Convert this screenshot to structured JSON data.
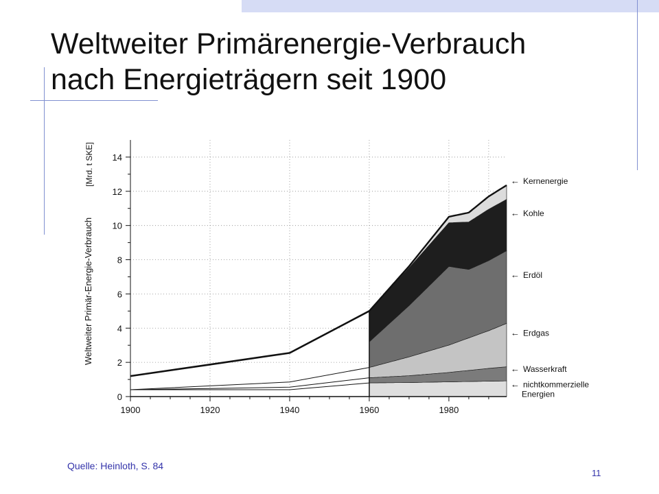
{
  "slide": {
    "title_line1": "Weltweiter Primärenergie-Verbrauch",
    "title_line2": "nach Energieträgern seit 1900",
    "source": "Quelle: Heinloth, S. 84",
    "page_number": "11"
  },
  "colors": {
    "decor_bar": "#d6dcf5",
    "decor_line": "#7f8fd0",
    "footer_text": "#3333aa"
  },
  "chart_data": {
    "type": "area",
    "ylabel": "Weltweiter Primär-Energie-Verbrauch",
    "yunit": "[Mrd. t SKE]",
    "ylim": [
      0,
      15
    ],
    "xlim": [
      1900,
      1996
    ],
    "yticks": [
      0,
      2,
      4,
      6,
      8,
      10,
      12,
      14
    ],
    "xticks": [
      1900,
      1920,
      1940,
      1960,
      1980
    ],
    "grid": true,
    "stacked": true,
    "series_order_bottom_to_top": [
      "nichtkommerzielle Energien",
      "Wasserkraft",
      "Erdgas",
      "Erdöl",
      "Kohle",
      "Kernenergie"
    ],
    "series": [
      {
        "name": "nichtkommerzielle Energien",
        "color": "#dedede",
        "x": [
          1900,
          1940,
          1960,
          1970,
          1980,
          1990,
          1996
        ],
        "y": [
          0.4,
          0.4,
          0.8,
          0.82,
          0.86,
          0.9,
          0.92
        ]
      },
      {
        "name": "Wasserkraft",
        "color": "#7b7b7b",
        "x": [
          1900,
          1940,
          1960,
          1970,
          1980,
          1990,
          1996
        ],
        "y": [
          0.0,
          0.15,
          0.3,
          0.4,
          0.55,
          0.75,
          0.85
        ]
      },
      {
        "name": "Erdgas",
        "color": "#c4c4c4",
        "x": [
          1900,
          1940,
          1960,
          1970,
          1980,
          1990,
          1996
        ],
        "y": [
          0.0,
          0.3,
          0.6,
          1.1,
          1.6,
          2.2,
          2.65
        ]
      },
      {
        "name": "Erdöl",
        "color": "#6e6e6e",
        "x": [
          1900,
          1940,
          1960,
          1970,
          1980,
          1985,
          1990,
          1996
        ],
        "y": [
          0.0,
          0.4,
          1.5,
          3.0,
          4.6,
          4.0,
          4.1,
          4.3
        ]
      },
      {
        "name": "Kohle",
        "color": "#1e1e1e",
        "x": [
          1900,
          1940,
          1960,
          1970,
          1980,
          1990,
          1996
        ],
        "y": [
          0.8,
          1.3,
          1.8,
          2.2,
          2.55,
          3.0,
          3.0
        ]
      },
      {
        "name": "Kernenergie",
        "color": "#dcdcdc",
        "x": [
          1900,
          1940,
          1960,
          1970,
          1980,
          1990,
          1996
        ],
        "y": [
          0.0,
          0.0,
          0.0,
          0.1,
          0.35,
          0.75,
          0.85
        ]
      }
    ],
    "legend": [
      "Kernenergie",
      "Kohle",
      "Erdöl",
      "Erdgas",
      "Wasserkraft",
      "nichtkommerzielle Energien"
    ],
    "legend_placement": "right"
  }
}
